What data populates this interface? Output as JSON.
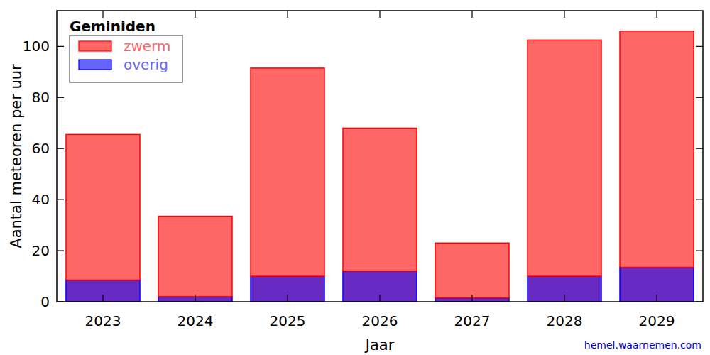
{
  "chart_data": {
    "type": "bar",
    "title": "Geminiden",
    "x_label": "Jaar",
    "y_label": "Aantal meteoren per uur",
    "source": "hemel.waarnemen.com",
    "categories": [
      "2023",
      "2024",
      "2025",
      "2026",
      "2027",
      "2028",
      "2029"
    ],
    "series": [
      {
        "name": "overig",
        "color": "#0000ff",
        "values": [
          8.5,
          2,
          10,
          12,
          1.5,
          10,
          13.5
        ]
      },
      {
        "name": "zwerm",
        "color": "#ff0000",
        "values": [
          57,
          31.5,
          81.5,
          56,
          21.5,
          92.5,
          92.5
        ]
      }
    ],
    "stacked": true,
    "legend": "upper left",
    "ylim": [
      0,
      114
    ],
    "yticks": [
      0,
      20,
      40,
      60,
      80,
      100
    ],
    "grid": false
  }
}
